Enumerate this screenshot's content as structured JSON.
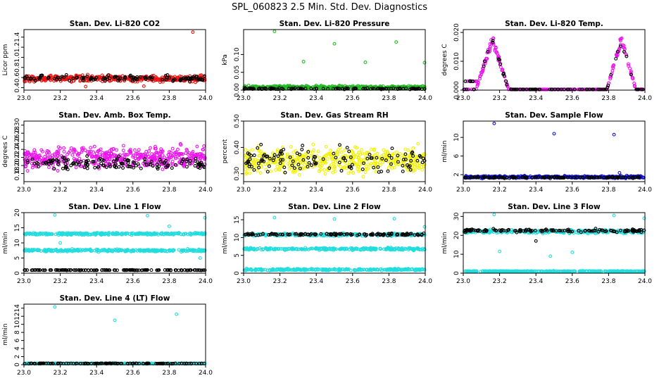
{
  "title": "SPL_060823  2.5 Min. Std. Dev. Diagnostics",
  "chart_data": [
    {
      "type": "scatter",
      "title": "Stan. Dev. Li-820 CO2",
      "ylabel": "Licor ppm",
      "xlim": [
        23.0,
        24.0
      ],
      "ylim": [
        0.35,
        1.55
      ],
      "xticks": [
        "23.0",
        "23.2",
        "23.4",
        "23.6",
        "23.8",
        "24.0"
      ],
      "yticks": [
        "0.4",
        "0.6",
        "0.8",
        "1.0",
        "1.2",
        "1.4"
      ],
      "series": [
        {
          "name": "main",
          "color": "#ee1111",
          "pattern": "noise",
          "base": 0.58,
          "spread": 0.06,
          "count": 420
        },
        {
          "name": "ref",
          "color": "#000000",
          "pattern": "noise",
          "base": 0.58,
          "spread": 0.06,
          "count": 120
        }
      ],
      "outliers": [
        {
          "x": 23.93,
          "y": 1.5,
          "color": "#ee1111"
        },
        {
          "x": 23.34,
          "y": 0.42,
          "color": "#ee1111"
        },
        {
          "x": 23.66,
          "y": 0.43,
          "color": "#ee1111"
        }
      ]
    },
    {
      "type": "scatter",
      "title": "Stan. Dev. Li-820 Pressure",
      "ylabel": "kPa",
      "xlim": [
        23.0,
        24.0
      ],
      "ylim": [
        0.0,
        0.17
      ],
      "xticks": [
        "23.0",
        "23.2",
        "23.4",
        "23.6",
        "23.8",
        "24.0"
      ],
      "yticks": [
        "0.00",
        "0.05",
        "0.10"
      ],
      "series": [
        {
          "name": "main",
          "color": "#22bb22",
          "pattern": "noise",
          "base": 0.008,
          "spread": 0.004,
          "count": 420
        },
        {
          "name": "ref",
          "color": "#000000",
          "pattern": "noise",
          "base": 0.004,
          "spread": 0.002,
          "count": 120
        }
      ],
      "outliers": [
        {
          "x": 23.17,
          "y": 0.165,
          "color": "#22bb22"
        },
        {
          "x": 23.5,
          "y": 0.13,
          "color": "#22bb22"
        },
        {
          "x": 23.84,
          "y": 0.135,
          "color": "#22bb22"
        },
        {
          "x": 23.33,
          "y": 0.08,
          "color": "#22bb22"
        },
        {
          "x": 23.67,
          "y": 0.078,
          "color": "#22bb22"
        },
        {
          "x": 24.0,
          "y": 0.077,
          "color": "#22bb22"
        }
      ]
    },
    {
      "type": "scatter",
      "title": "Stan. Dev. Li-820 Temp.",
      "ylabel": "degrees C",
      "xlim": [
        23.0,
        24.0
      ],
      "ylim": [
        0.0,
        0.021
      ],
      "xticks": [
        "23.0",
        "23.2",
        "23.4",
        "23.6",
        "23.8",
        "24.0"
      ],
      "yticks": [
        "0.000",
        "0.010",
        "0.020"
      ],
      "series": [
        {
          "name": "main",
          "color": "#ee11ee",
          "pattern": "peaks",
          "base": 0.0,
          "spread": 0.0008,
          "count": 320
        },
        {
          "name": "ref",
          "color": "#000000",
          "pattern": "peaks",
          "base": 0.0,
          "spread": 0.0005,
          "count": 90
        }
      ],
      "outliers": []
    },
    {
      "type": "scatter",
      "title": "Stan. Dev. Amb. Box Temp.",
      "ylabel": "degrees C",
      "xlim": [
        23.0,
        24.0
      ],
      "ylim": [
        0.16,
        0.31
      ],
      "xticks": [
        "23.0",
        "23.2",
        "23.4",
        "23.6",
        "23.8",
        "24.0"
      ],
      "yticks": [
        "0.18",
        "0.20",
        "0.22",
        "0.24",
        "0.26",
        "0.28",
        "0.30"
      ],
      "series": [
        {
          "name": "main",
          "color": "#ee11ee",
          "pattern": "noise",
          "base": 0.22,
          "spread": 0.025,
          "count": 480
        },
        {
          "name": "ref",
          "color": "#000000",
          "pattern": "noise",
          "base": 0.205,
          "spread": 0.015,
          "count": 140
        }
      ],
      "outliers": []
    },
    {
      "type": "scatter",
      "title": "Stan. Dev. Gas Stream RH",
      "ylabel": "percent",
      "xlim": [
        23.0,
        24.0
      ],
      "ylim": [
        0.27,
        0.5
      ],
      "xticks": [
        "23.0",
        "23.2",
        "23.4",
        "23.6",
        "23.8",
        "24.0"
      ],
      "yticks": [
        "0.30",
        "0.40",
        "0.50"
      ],
      "series": [
        {
          "name": "main",
          "color": "#f2f200",
          "pattern": "noise",
          "base": 0.35,
          "spread": 0.045,
          "count": 480
        },
        {
          "name": "ref",
          "color": "#000000",
          "pattern": "noise",
          "base": 0.35,
          "spread": 0.045,
          "count": 120
        }
      ],
      "outliers": []
    },
    {
      "type": "scatter",
      "title": "Stan. Dev. Sample Flow",
      "ylabel": "ml/min",
      "xlim": [
        23.0,
        24.0
      ],
      "ylim": [
        0.5,
        13.5
      ],
      "xticks": [
        "23.0",
        "23.2",
        "23.4",
        "23.6",
        "23.8",
        "24.0"
      ],
      "yticks": [
        "2",
        "6",
        "10"
      ],
      "series": [
        {
          "name": "main",
          "color": "#1111cc",
          "pattern": "noise",
          "base": 1.5,
          "spread": 0.25,
          "count": 420
        },
        {
          "name": "ref",
          "color": "#000000",
          "pattern": "noise",
          "base": 1.4,
          "spread": 0.15,
          "count": 120
        }
      ],
      "outliers": [
        {
          "x": 23.17,
          "y": 13.0,
          "color": "#1111cc"
        },
        {
          "x": 23.5,
          "y": 10.8,
          "color": "#1111cc"
        },
        {
          "x": 23.83,
          "y": 10.6,
          "color": "#1111cc"
        },
        {
          "x": 23.86,
          "y": 2.4,
          "color": "#1111cc"
        }
      ]
    },
    {
      "type": "scatter",
      "title": "Stan. Dev. Line 1 Flow",
      "ylabel": "ml/min",
      "xlim": [
        23.0,
        24.0
      ],
      "ylim": [
        0.0,
        20.0
      ],
      "xticks": [
        "23.0",
        "23.2",
        "23.4",
        "23.6",
        "23.8",
        "24.0"
      ],
      "yticks": [
        "0",
        "5",
        "10",
        "15",
        "20"
      ],
      "series": [
        {
          "name": "band-high",
          "color": "#22dddd",
          "pattern": "noise",
          "base": 13.0,
          "spread": 0.35,
          "count": 300
        },
        {
          "name": "band-mid",
          "color": "#22dddd",
          "pattern": "noise",
          "base": 7.5,
          "spread": 0.35,
          "count": 300
        },
        {
          "name": "ref",
          "color": "#000000",
          "pattern": "noise",
          "base": 1.0,
          "spread": 0.08,
          "count": 140
        }
      ],
      "outliers": [
        {
          "x": 23.17,
          "y": 19.2,
          "color": "#22dddd"
        },
        {
          "x": 23.68,
          "y": 19.0,
          "color": "#22dddd"
        },
        {
          "x": 24.0,
          "y": 18.3,
          "color": "#22dddd"
        },
        {
          "x": 23.2,
          "y": 10.0,
          "color": "#22dddd"
        },
        {
          "x": 23.8,
          "y": 15.5,
          "color": "#22dddd"
        },
        {
          "x": 23.97,
          "y": 5.0,
          "color": "#22dddd"
        }
      ]
    },
    {
      "type": "scatter",
      "title": "Stan. Dev. Line 2 Flow",
      "ylabel": "ml/min",
      "xlim": [
        23.0,
        24.0
      ],
      "ylim": [
        0.0,
        17.0
      ],
      "xticks": [
        "23.0",
        "23.2",
        "23.4",
        "23.6",
        "23.8",
        "24.0"
      ],
      "yticks": [
        "0",
        "5",
        "10",
        "15"
      ],
      "series": [
        {
          "name": "band-high",
          "color": "#22dddd",
          "pattern": "noise",
          "base": 10.8,
          "spread": 0.35,
          "count": 260
        },
        {
          "name": "ref",
          "color": "#000000",
          "pattern": "noise",
          "base": 10.9,
          "spread": 0.3,
          "count": 130
        },
        {
          "name": "band-mid",
          "color": "#22dddd",
          "pattern": "noise",
          "base": 6.8,
          "spread": 0.3,
          "count": 280
        },
        {
          "name": "band-low",
          "color": "#22dddd",
          "pattern": "noise",
          "base": 1.0,
          "spread": 0.25,
          "count": 280
        }
      ],
      "outliers": [
        {
          "x": 23.17,
          "y": 15.6,
          "color": "#22dddd"
        },
        {
          "x": 23.5,
          "y": 15.2,
          "color": "#22dddd"
        },
        {
          "x": 23.83,
          "y": 15.3,
          "color": "#22dddd"
        },
        {
          "x": 24.0,
          "y": 13.0,
          "color": "#22dddd"
        }
      ]
    },
    {
      "type": "scatter",
      "title": "Stan. Dev. Line 3 Flow",
      "ylabel": "ml/min",
      "xlim": [
        23.0,
        24.0
      ],
      "ylim": [
        0.0,
        32.0
      ],
      "xticks": [
        "23.0",
        "23.2",
        "23.4",
        "23.6",
        "23.8",
        "24.0"
      ],
      "yticks": [
        "0",
        "10",
        "20",
        "30"
      ],
      "series": [
        {
          "name": "band-high",
          "color": "#22dddd",
          "pattern": "noise",
          "base": 22.0,
          "spread": 0.9,
          "count": 300
        },
        {
          "name": "ref",
          "color": "#000000",
          "pattern": "noise",
          "base": 22.5,
          "spread": 0.8,
          "count": 130
        },
        {
          "name": "band-low",
          "color": "#22dddd",
          "pattern": "noise",
          "base": 1.0,
          "spread": 0.2,
          "count": 320
        }
      ],
      "outliers": [
        {
          "x": 23.17,
          "y": 31.0,
          "color": "#22dddd"
        },
        {
          "x": 23.83,
          "y": 30.5,
          "color": "#22dddd"
        },
        {
          "x": 24.0,
          "y": 29.0,
          "color": "#22dddd"
        },
        {
          "x": 23.2,
          "y": 11.5,
          "color": "#22dddd"
        },
        {
          "x": 23.48,
          "y": 9.0,
          "color": "#22dddd"
        },
        {
          "x": 23.6,
          "y": 11.0,
          "color": "#22dddd"
        },
        {
          "x": 23.4,
          "y": 17.0,
          "color": "#000000"
        }
      ]
    },
    {
      "type": "scatter",
      "title": "Stan. Dev. Line 4 (LT) Flow",
      "ylabel": "ml/min",
      "xlim": [
        23.0,
        24.0
      ],
      "ylim": [
        0.0,
        15.0
      ],
      "xticks": [
        "23.0",
        "23.2",
        "23.4",
        "23.6",
        "23.8",
        "24.0"
      ],
      "yticks": [
        "0",
        "2",
        "4",
        "6",
        "8",
        "10",
        "12",
        "14"
      ],
      "series": [
        {
          "name": "main",
          "color": "#22dddd",
          "pattern": "noise",
          "base": 0.3,
          "spread": 0.08,
          "count": 320
        },
        {
          "name": "ref",
          "color": "#000000",
          "pattern": "noise",
          "base": 0.3,
          "spread": 0.06,
          "count": 140
        }
      ],
      "outliers": [
        {
          "x": 23.17,
          "y": 14.3,
          "color": "#22dddd"
        },
        {
          "x": 23.5,
          "y": 11.0,
          "color": "#22dddd"
        },
        {
          "x": 23.84,
          "y": 12.5,
          "color": "#22dddd"
        }
      ]
    }
  ]
}
